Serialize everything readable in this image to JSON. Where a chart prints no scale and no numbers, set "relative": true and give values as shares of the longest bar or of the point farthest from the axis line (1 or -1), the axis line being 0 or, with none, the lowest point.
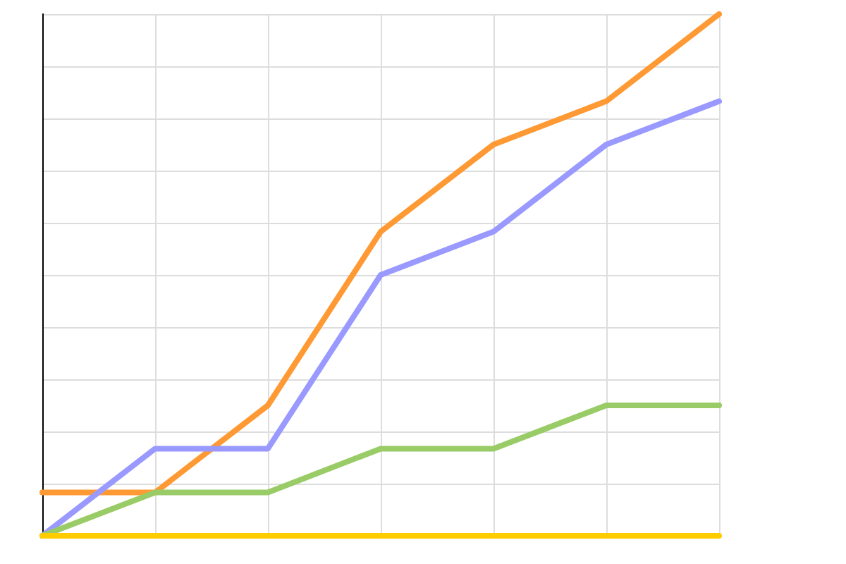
{
  "chart_data": {
    "type": "line",
    "relative": true,
    "categories": [
      null,
      null,
      null,
      null,
      null,
      null,
      null
    ],
    "series": [
      {
        "color": "#ff9933",
        "values": [
          0.083,
          0.083,
          0.25,
          0.583,
          0.75,
          0.833,
          1
        ]
      },
      {
        "color": "#9999ff",
        "values": [
          0,
          0.167,
          0.167,
          0.5,
          0.583,
          0.75,
          0.833
        ]
      },
      {
        "color": "#99cc66",
        "values": [
          0,
          0.083,
          0.083,
          0.167,
          0.167,
          0.25,
          0.25
        ]
      },
      {
        "color": "#ffcc00",
        "values": [
          0,
          0,
          0,
          0,
          0,
          0,
          0
        ]
      }
    ],
    "grid": true,
    "marker": "none",
    "line_style": "solid"
  }
}
